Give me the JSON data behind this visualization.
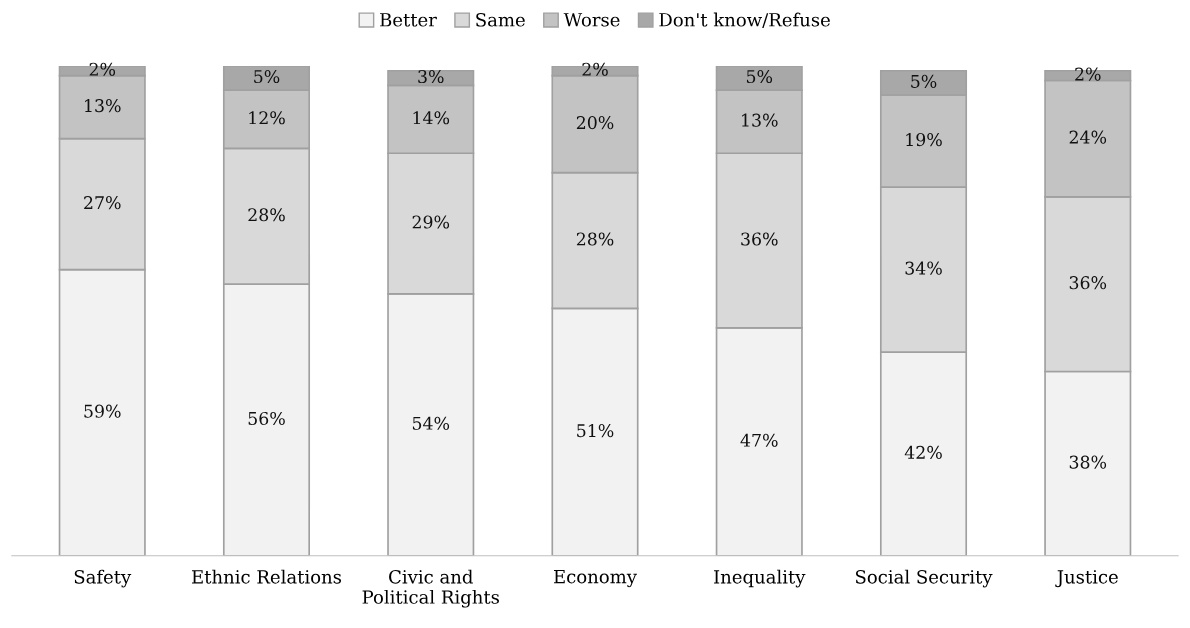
{
  "chart_data": {
    "type": "bar",
    "stacked": true,
    "legend": "top",
    "grid": false,
    "categories": [
      "Safety",
      "Ethnic Relations",
      "Civic and\nPolitical Rights",
      "Economy",
      "Inequality",
      "Social Security",
      "Justice"
    ],
    "series": [
      {
        "name": "Better",
        "color": "#f2f2f2",
        "values": [
          59,
          56,
          54,
          51,
          47,
          42,
          38
        ],
        "value_labels": [
          "59%",
          "56%",
          "54%",
          "51%",
          "47%",
          "42%",
          "38%"
        ]
      },
      {
        "name": "Same",
        "color": "#d9d9d9",
        "values": [
          27,
          28,
          29,
          28,
          36,
          34,
          36
        ],
        "value_labels": [
          "27%",
          "28%",
          "29%",
          "28%",
          "36%",
          "34%",
          "36%"
        ]
      },
      {
        "name": "Worse",
        "color": "#c3c3c3",
        "values": [
          13,
          12,
          14,
          20,
          13,
          19,
          24
        ],
        "value_labels": [
          "13%",
          "12%",
          "14%",
          "20%",
          "13%",
          "19%",
          "24%"
        ]
      },
      {
        "name": "Don't know/Refuse",
        "color": "#a8a8a8",
        "values": [
          2,
          5,
          3,
          2,
          5,
          5,
          2
        ],
        "value_labels": [
          "2%",
          "5%",
          "3%",
          "2%",
          "5%",
          "5%",
          "2%"
        ]
      }
    ]
  }
}
